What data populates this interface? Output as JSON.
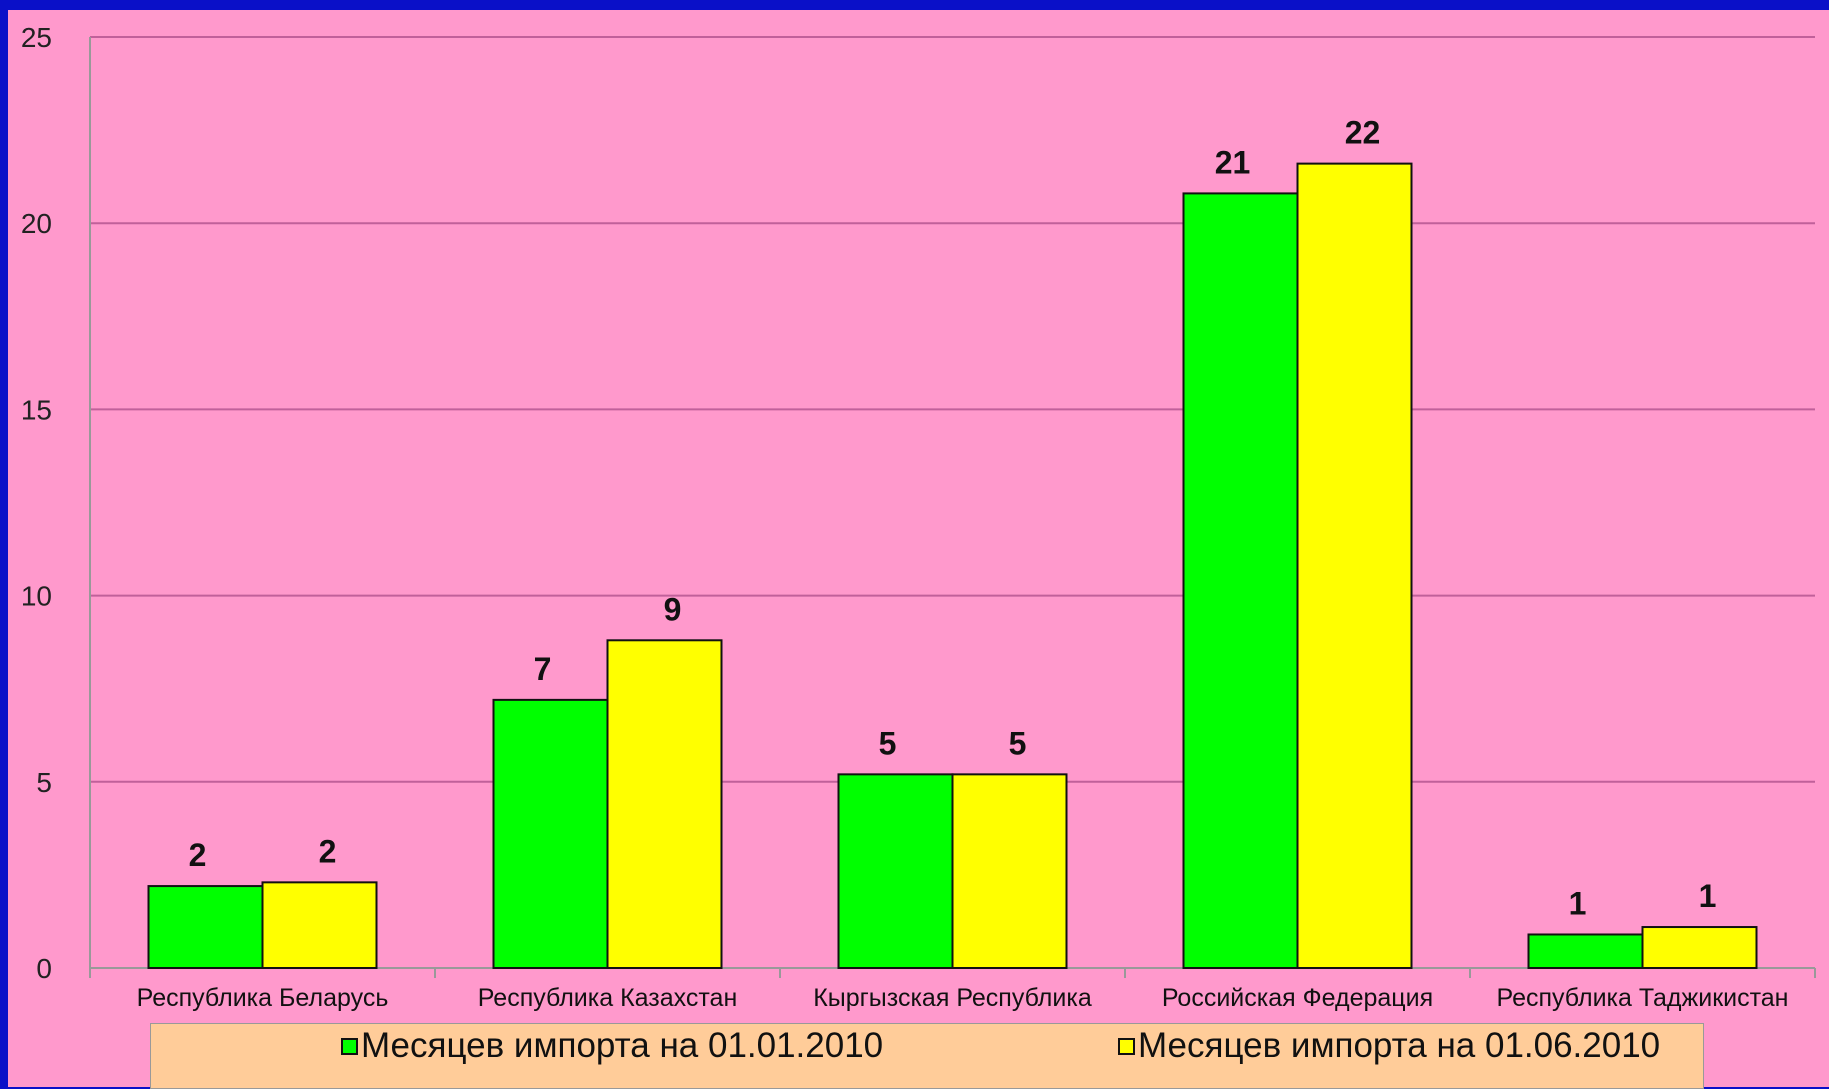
{
  "chart_data": {
    "type": "bar",
    "categories": [
      "Республика Беларусь",
      "Республика Казахстан",
      "Кыргызская Республика",
      "Российская Федерация",
      "Республика Таджикистан"
    ],
    "series": [
      {
        "name": "Месяцев импорта на 01.01.2010",
        "values": [
          2.2,
          7.2,
          5.2,
          20.8,
          0.9
        ],
        "labels": [
          "2",
          "7",
          "5",
          "21",
          "1"
        ],
        "color": "#00ff00"
      },
      {
        "name": "Месяцев импорта на 01.06.2010",
        "values": [
          2.3,
          8.8,
          5.2,
          21.6,
          1.1
        ],
        "labels": [
          "2",
          "9",
          "5",
          "22",
          "1"
        ],
        "color": "#ffff00"
      }
    ],
    "yticks": [
      "0",
      "5",
      "10",
      "15",
      "20",
      "25"
    ],
    "ylim": [
      0,
      25
    ],
    "grid": true,
    "legend_position": "bottom",
    "background": "#ff99cc",
    "legend_background": "#ffcc99"
  }
}
